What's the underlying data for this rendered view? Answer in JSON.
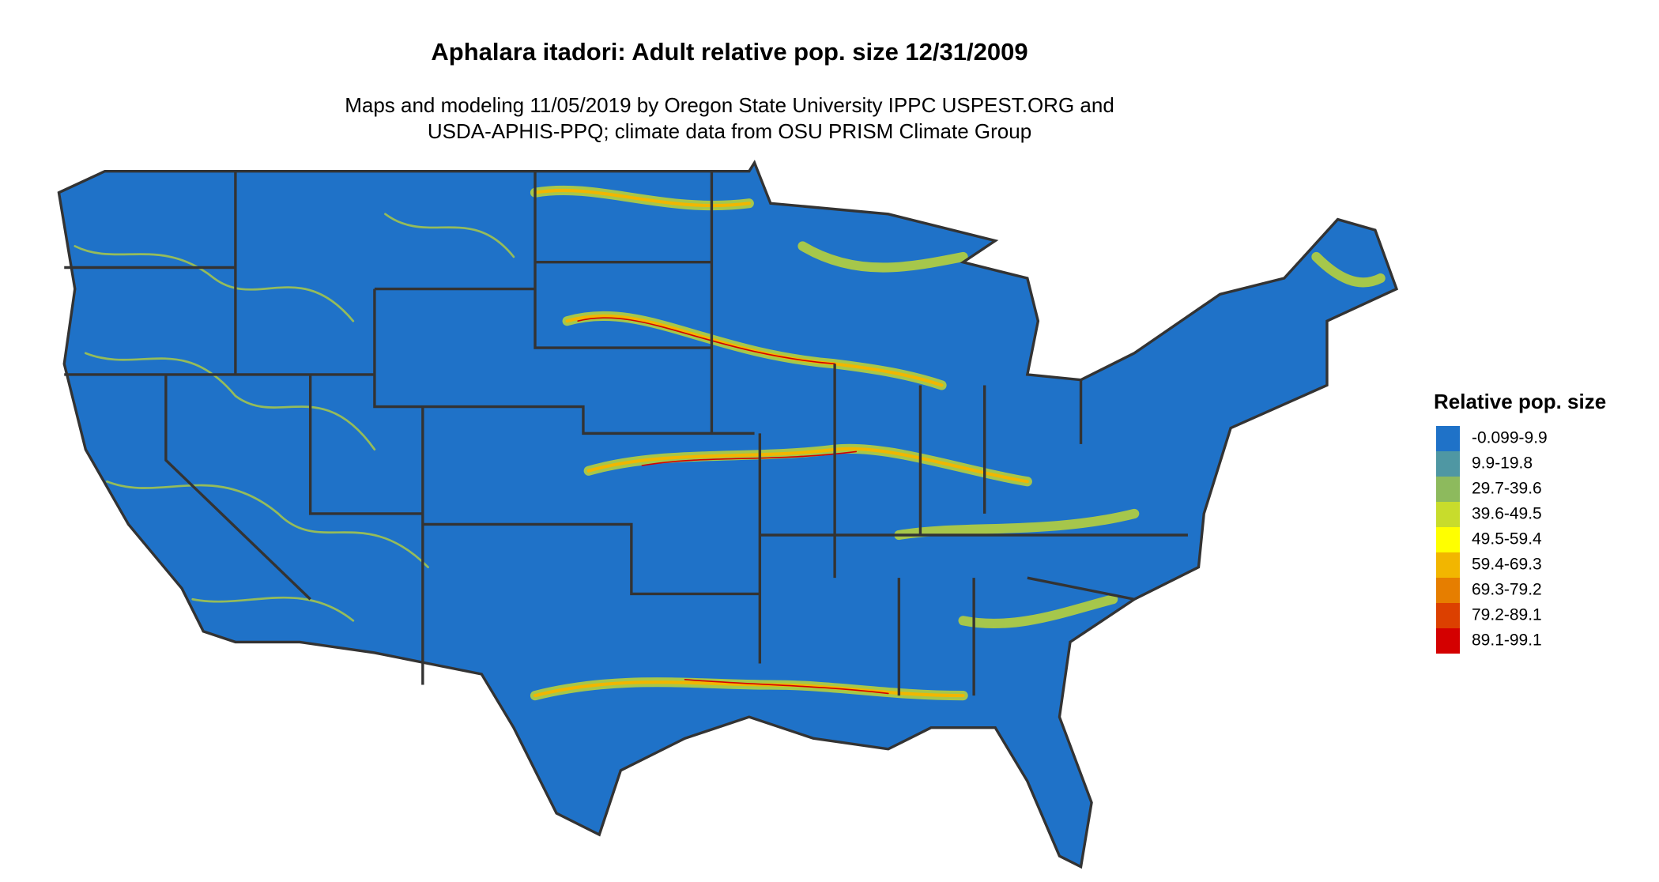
{
  "title": "Aphalara itadori: Adult relative pop. size 12/31/2009",
  "subtitle": [
    "Maps and modeling 11/05/2019 by Oregon State University IPPC USPEST.ORG and",
    "USDA-APHIS-PPQ; climate data from OSU PRISM Climate Group"
  ],
  "legend": {
    "title": "Relative pop. size",
    "items": [
      {
        "label": "-0.099-9.9",
        "color": "#1f72c8"
      },
      {
        "label": "9.9-19.8",
        "color": "#4f97a3"
      },
      {
        "label": "29.7-39.6",
        "color": "#8dba5d"
      },
      {
        "label": "39.6-49.5",
        "color": "#c8dc2c"
      },
      {
        "label": "49.5-59.4",
        "color": "#ffff00"
      },
      {
        "label": "59.4-69.3",
        "color": "#f2b600"
      },
      {
        "label": "69.3-79.2",
        "color": "#e67e00"
      },
      {
        "label": "79.2-89.1",
        "color": "#dc4000"
      },
      {
        "label": "89.1-99.1",
        "color": "#d40000"
      }
    ]
  }
}
